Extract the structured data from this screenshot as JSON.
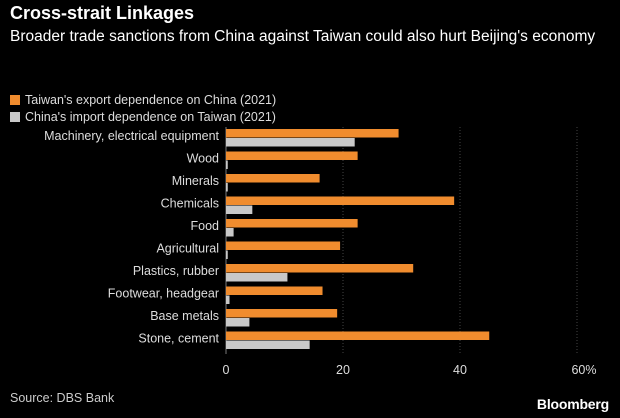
{
  "chart_data": {
    "type": "bar",
    "orientation": "horizontal",
    "title": "Cross-strait Linkages",
    "subtitle": "Broader trade sanctions from China against Taiwan could also hurt Beijing's economy",
    "categories": [
      "Machinery, electrical equipment",
      "Wood",
      "Minerals",
      "Chemicals",
      "Food",
      "Agricultural",
      "Plastics, rubber",
      "Footwear, headgear",
      "Base metals",
      "Stone, cement"
    ],
    "series": [
      {
        "name": "Taiwan's export dependence on China (2021)",
        "color": "#f08c2e",
        "values": [
          29.5,
          22.5,
          16,
          39,
          22.5,
          19.5,
          32,
          16.5,
          19,
          45
        ]
      },
      {
        "name": "China's import dependence on Taiwan (2021)",
        "color": "#c8c8c8",
        "values": [
          22,
          0.3,
          0.3,
          4.5,
          1.3,
          0.3,
          10.5,
          0.6,
          4,
          14.3
        ]
      }
    ],
    "xlim": [
      0,
      60
    ],
    "xticks": [
      "0",
      "20",
      "40",
      "60%"
    ],
    "xlabel": "",
    "ylabel": "",
    "legend_position": "top-left",
    "grid": true
  },
  "source": "Source: DBS Bank",
  "brand": "Bloomberg"
}
